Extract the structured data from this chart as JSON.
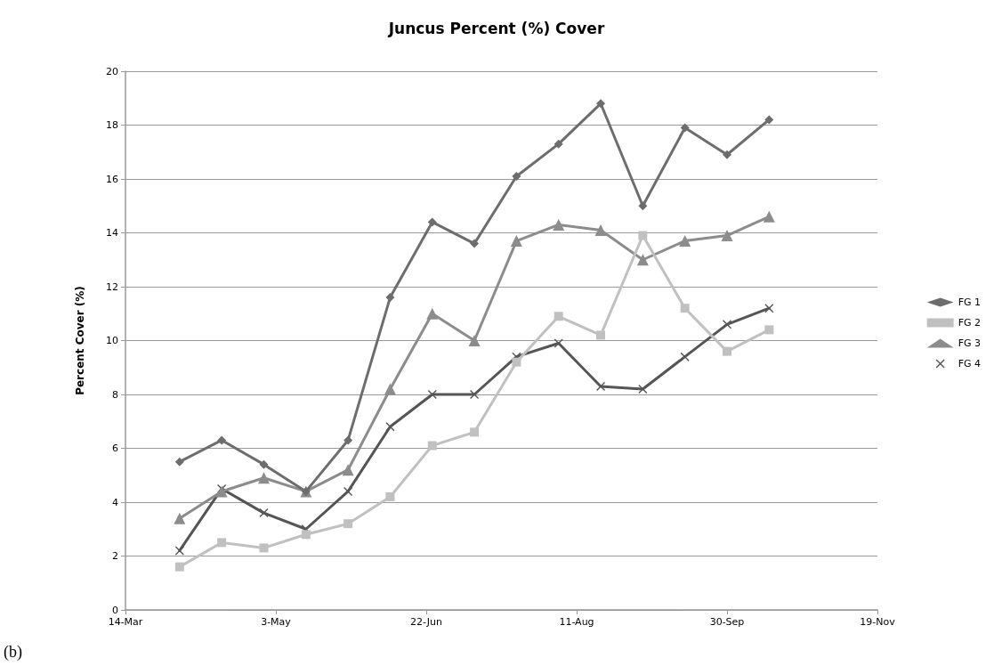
{
  "chart_data": {
    "type": "line",
    "title": "Juncus Percent (%) Cover",
    "ylabel": "Percent Cover (%)",
    "annotations": [
      "(b)"
    ],
    "x": [
      "--04-01",
      "--04-15",
      "--04-29",
      "--05-13",
      "--05-27",
      "--06-10",
      "--06-24",
      "--07-08",
      "--07-22",
      "--08-05",
      "--08-19",
      "--09-02",
      "--09-16",
      "--09-30",
      "--10-14"
    ],
    "series": [
      {
        "name": "FG 1",
        "color": "#6d6d6d",
        "marker": "diamond",
        "values": [
          5.5,
          6.3,
          5.4,
          4.4,
          6.3,
          11.6,
          14.4,
          13.6,
          16.1,
          17.3,
          18.8,
          15.0,
          17.9,
          16.9,
          18.2
        ]
      },
      {
        "name": "FG 2",
        "color": "#c0c0c0",
        "marker": "square",
        "values": [
          1.6,
          2.5,
          2.3,
          2.8,
          3.2,
          4.2,
          6.1,
          6.6,
          9.2,
          10.9,
          10.2,
          13.9,
          11.2,
          9.6,
          10.4
        ]
      },
      {
        "name": "FG 3",
        "color": "#8c8c8c",
        "marker": "triangle",
        "values": [
          3.4,
          4.4,
          4.9,
          4.4,
          5.2,
          8.2,
          11.0,
          10.0,
          13.7,
          14.3,
          14.1,
          13.0,
          13.7,
          13.9,
          14.6
        ]
      },
      {
        "name": "FG 4",
        "color": "#555555",
        "marker": "cross",
        "values": [
          2.2,
          4.5,
          3.6,
          3.0,
          4.4,
          6.8,
          8.0,
          8.0,
          9.4,
          9.9,
          8.3,
          8.2,
          9.4,
          10.6,
          11.2
        ]
      }
    ],
    "xlim": [
      "--03-14",
      "--11-19"
    ],
    "xticks": [
      {
        "value": "--03-14",
        "label": "14-Mar"
      },
      {
        "value": "--05-03",
        "label": "3-May"
      },
      {
        "value": "--06-22",
        "label": "22-Jun"
      },
      {
        "value": "--08-11",
        "label": "11-Aug"
      },
      {
        "value": "--09-30",
        "label": "30-Sep"
      },
      {
        "value": "--11-19",
        "label": "19-Nov"
      }
    ],
    "ylim": [
      0,
      20
    ],
    "yticks": [
      0,
      2,
      4,
      6,
      8,
      10,
      12,
      14,
      16,
      18,
      20
    ],
    "grid": "y",
    "legend": "right",
    "line_style": "solid"
  }
}
